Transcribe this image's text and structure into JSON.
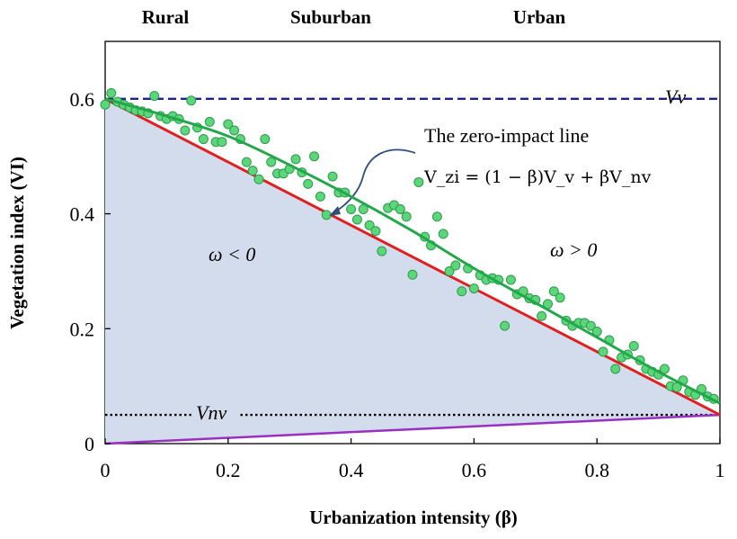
{
  "chart_data": {
    "type": "scatter",
    "zone_labels": [
      "Rural",
      "Suburban",
      "Urban"
    ],
    "xlabel": "Urbanization intensity (β)",
    "ylabel": "Vegetation index (VI)",
    "xlim": [
      0,
      1
    ],
    "ylim": [
      0,
      0.7
    ],
    "x_ticks": [
      0,
      0.2,
      0.4,
      0.6,
      0.8,
      1
    ],
    "x_tick_labels": [
      "0",
      "0.2",
      "0.4",
      "0.6",
      "0.8",
      "1"
    ],
    "y_ticks": [
      0,
      0.2,
      0.4,
      0.6
    ],
    "y_tick_labels": [
      "0",
      "0.2",
      "0.4",
      "0.6"
    ],
    "grid": false,
    "reference_lines": {
      "Vv": {
        "label": "Vv",
        "value": 0.6,
        "color": "#1f1f99",
        "style": "dash-dot"
      },
      "Vnv": {
        "label": "Vnv",
        "value": 0.05,
        "color": "#000000",
        "style": "dotted"
      }
    },
    "zero_impact_line": {
      "from": [
        0,
        0.6
      ],
      "to": [
        1,
        0.05
      ],
      "color": "#e02020"
    },
    "purple_line": {
      "from": [
        0,
        0
      ],
      "to": [
        1,
        0.05
      ],
      "color": "#9b30c0"
    },
    "fitted_curve": {
      "color": "#22a84a",
      "x": [
        0,
        0.1,
        0.2,
        0.3,
        0.4,
        0.5,
        0.6,
        0.7,
        0.8,
        0.9,
        1.0
      ],
      "y": [
        0.6,
        0.57,
        0.535,
        0.485,
        0.43,
        0.37,
        0.305,
        0.245,
        0.185,
        0.125,
        0.07
      ]
    },
    "shaded_region_color": "#d2dcec",
    "points": {
      "color": "#5cd67a",
      "x": [
        0.0,
        0.01,
        0.02,
        0.03,
        0.04,
        0.05,
        0.06,
        0.07,
        0.08,
        0.09,
        0.1,
        0.11,
        0.12,
        0.13,
        0.14,
        0.15,
        0.16,
        0.17,
        0.18,
        0.19,
        0.2,
        0.21,
        0.22,
        0.23,
        0.24,
        0.25,
        0.26,
        0.27,
        0.28,
        0.29,
        0.3,
        0.31,
        0.32,
        0.33,
        0.34,
        0.35,
        0.36,
        0.37,
        0.38,
        0.39,
        0.4,
        0.41,
        0.42,
        0.43,
        0.44,
        0.45,
        0.46,
        0.47,
        0.48,
        0.49,
        0.5,
        0.51,
        0.52,
        0.53,
        0.54,
        0.55,
        0.56,
        0.57,
        0.58,
        0.59,
        0.6,
        0.61,
        0.62,
        0.63,
        0.64,
        0.65,
        0.66,
        0.67,
        0.68,
        0.69,
        0.7,
        0.71,
        0.72,
        0.73,
        0.74,
        0.75,
        0.76,
        0.77,
        0.78,
        0.79,
        0.8,
        0.81,
        0.82,
        0.83,
        0.84,
        0.85,
        0.86,
        0.87,
        0.88,
        0.89,
        0.9,
        0.91,
        0.92,
        0.93,
        0.94,
        0.95,
        0.96,
        0.97,
        0.98,
        0.99
      ],
      "y": [
        0.59,
        0.61,
        0.595,
        0.59,
        0.585,
        0.58,
        0.578,
        0.575,
        0.605,
        0.57,
        0.565,
        0.57,
        0.565,
        0.545,
        0.597,
        0.55,
        0.53,
        0.56,
        0.525,
        0.525,
        0.556,
        0.545,
        0.53,
        0.49,
        0.475,
        0.46,
        0.53,
        0.49,
        0.47,
        0.47,
        0.478,
        0.495,
        0.472,
        0.452,
        0.5,
        0.43,
        0.398,
        0.465,
        0.437,
        0.437,
        0.408,
        0.39,
        0.408,
        0.38,
        0.37,
        0.335,
        0.41,
        0.415,
        0.408,
        0.395,
        0.294,
        0.455,
        0.36,
        0.345,
        0.395,
        0.365,
        0.3,
        0.31,
        0.265,
        0.305,
        0.27,
        0.293,
        0.285,
        0.288,
        0.285,
        0.205,
        0.285,
        0.26,
        0.265,
        0.253,
        0.25,
        0.222,
        0.243,
        0.265,
        0.254,
        0.214,
        0.205,
        0.21,
        0.21,
        0.205,
        0.195,
        0.16,
        0.18,
        0.13,
        0.15,
        0.155,
        0.17,
        0.145,
        0.13,
        0.125,
        0.12,
        0.13,
        0.1,
        0.098,
        0.11,
        0.09,
        0.085,
        0.095,
        0.082,
        0.078
      ]
    },
    "annotations": {
      "zero_impact_title": "The zero-impact  line",
      "formula": "V_zi = (1 − β)V_v + βV_nv",
      "omega_neg": "ω < 0",
      "omega_pos": "ω > 0"
    }
  }
}
